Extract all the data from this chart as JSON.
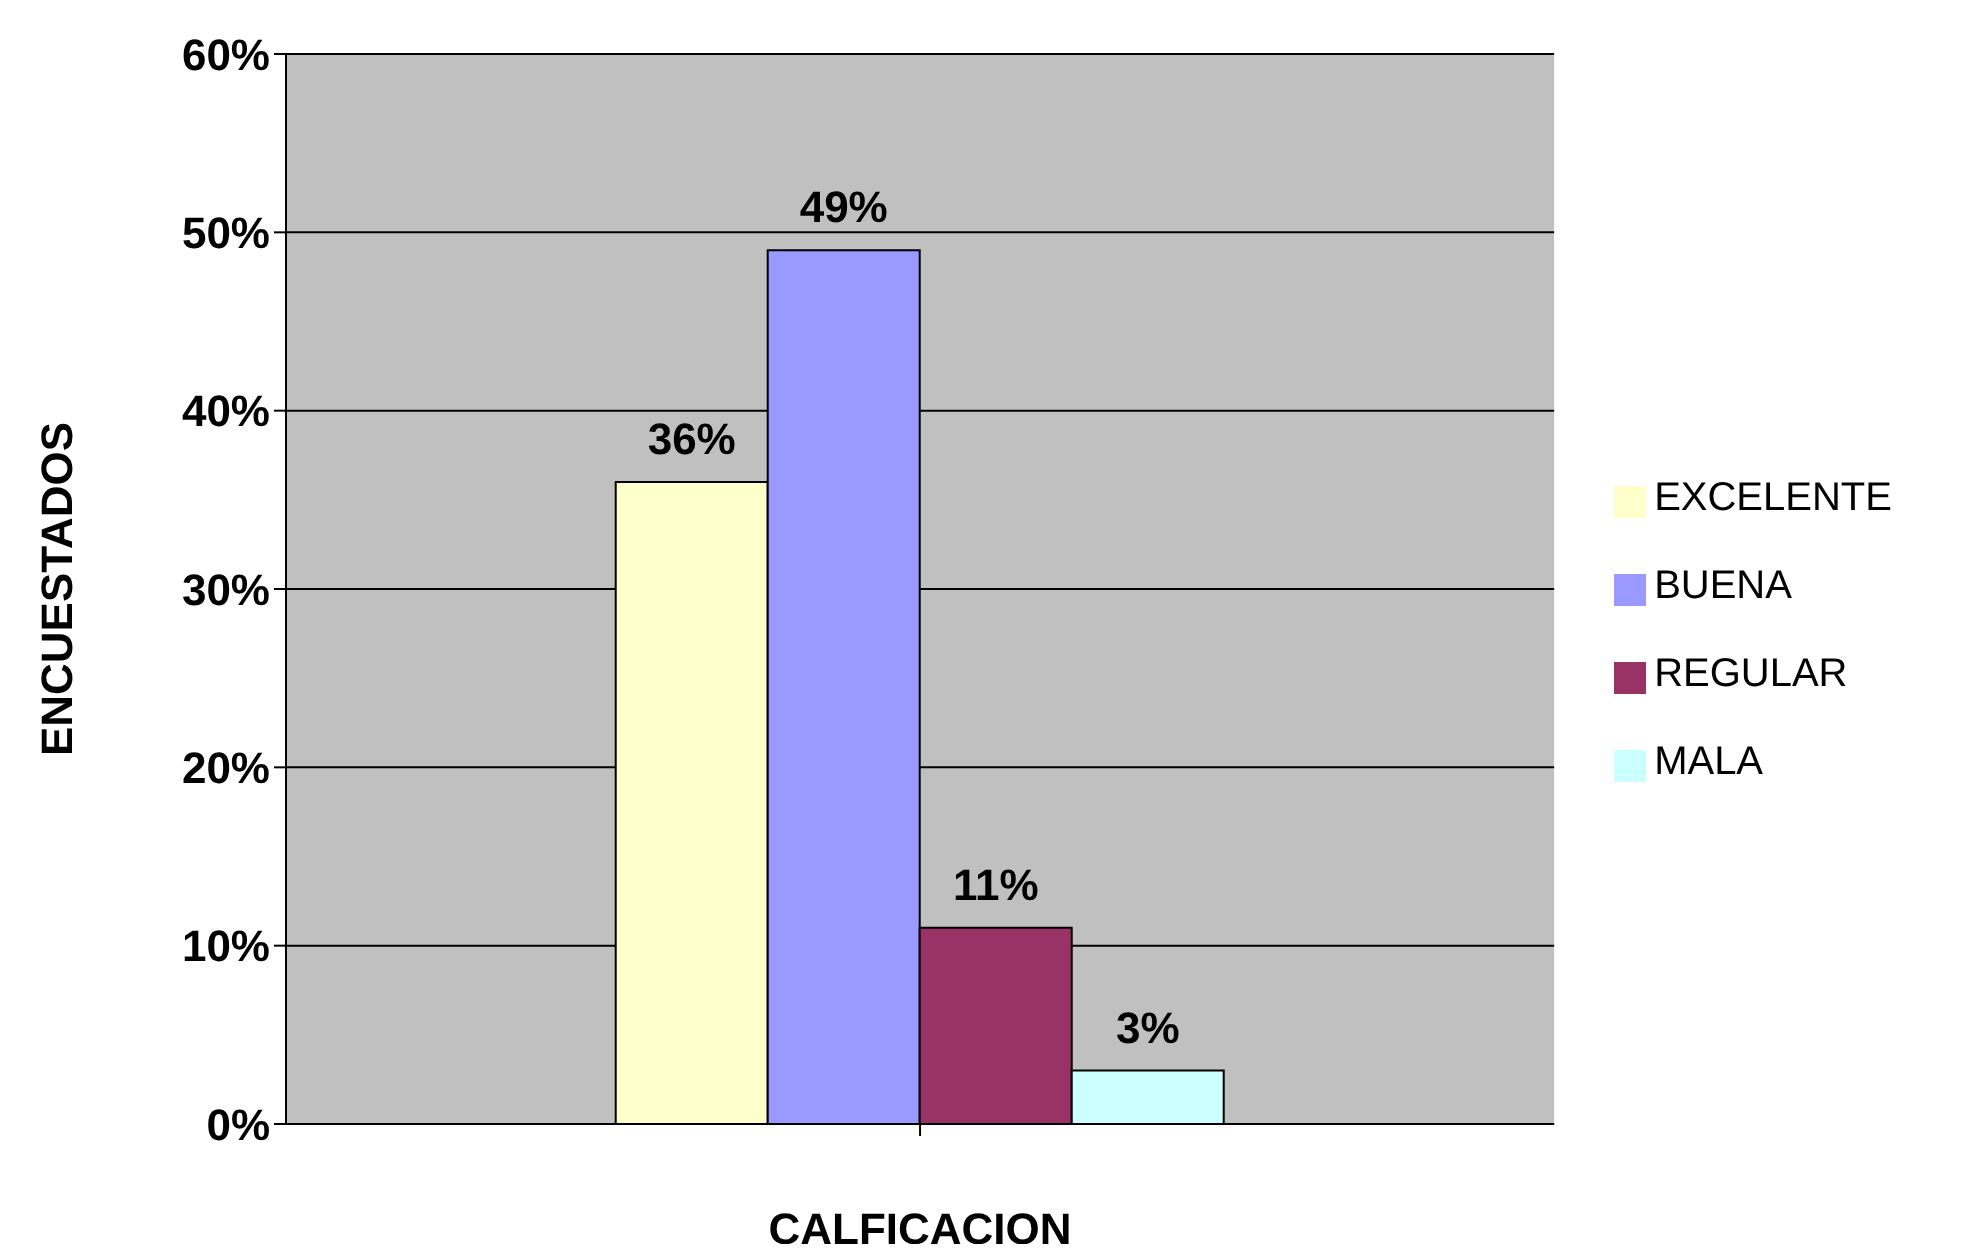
{
  "chart_data": {
    "type": "bar",
    "xlabel": "CALFICACION",
    "ylabel": "ENCUESTADOS",
    "categories": [
      null
    ],
    "series": [
      {
        "name": "EXCELENTE",
        "color": "#ffffcc",
        "values": [
          36
        ],
        "value_labels": [
          "36%"
        ]
      },
      {
        "name": "BUENA",
        "color": "#9999ff",
        "values": [
          49
        ],
        "value_labels": [
          "49%"
        ]
      },
      {
        "name": "REGULAR",
        "color": "#993366",
        "values": [
          11
        ],
        "value_labels": [
          "11%"
        ]
      },
      {
        "name": "MALA",
        "color": "#ccffff",
        "values": [
          3
        ],
        "value_labels": [
          "3%"
        ]
      }
    ],
    "ylim": [
      0,
      60
    ],
    "yticks": [
      {
        "value": 0,
        "label": "0%"
      },
      {
        "value": 10,
        "label": "10%"
      },
      {
        "value": 20,
        "label": "20%"
      },
      {
        "value": 30,
        "label": "30%"
      },
      {
        "value": 40,
        "label": "40%"
      },
      {
        "value": 50,
        "label": "50%"
      },
      {
        "value": 60,
        "label": "60%"
      }
    ],
    "grid": "y",
    "legend": "right"
  }
}
